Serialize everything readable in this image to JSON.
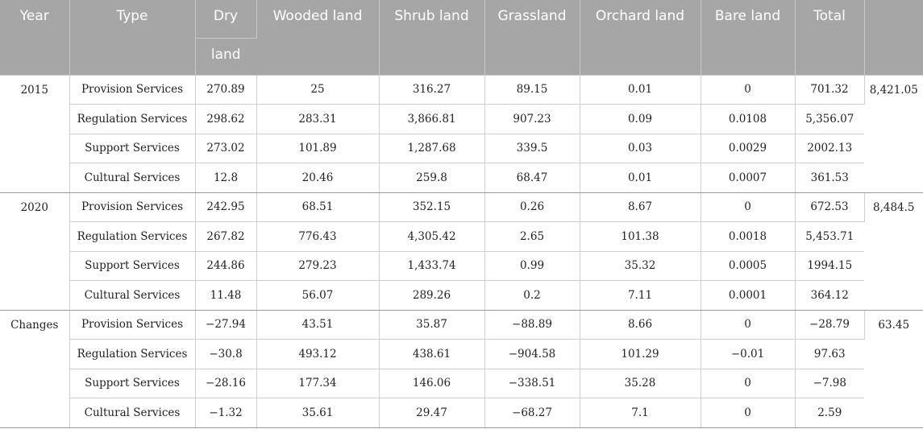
{
  "table": {
    "headers": {
      "year": "Year",
      "type": "Type",
      "dry_line1": "Dry",
      "dry_line2": "land",
      "wooded": "Wooded land",
      "shrub": "Shrub land",
      "grassland": "Grassland",
      "orchard": "Orchard land",
      "bare": "Bare land",
      "total": "Total"
    },
    "groups": [
      {
        "year": "2015",
        "grand_total": "8,421.05",
        "rows": [
          {
            "type": "Provision Services",
            "dry": "270.89",
            "wooded": "25",
            "shrub": "316.27",
            "grass": "89.15",
            "orchard": "0.01",
            "bare": "0",
            "total": "701.32"
          },
          {
            "type": "Regulation Services",
            "dry": "298.62",
            "wooded": "283.31",
            "shrub": "3,866.81",
            "grass": "907.23",
            "orchard": "0.09",
            "bare": "0.0108",
            "total": "5,356.07"
          },
          {
            "type": "Support Services",
            "dry": "273.02",
            "wooded": "101.89",
            "shrub": "1,287.68",
            "grass": "339.5",
            "orchard": "0.03",
            "bare": "0.0029",
            "total": "2002.13"
          },
          {
            "type": "Cultural Services",
            "dry": "12.8",
            "wooded": "20.46",
            "shrub": "259.8",
            "grass": "68.47",
            "orchard": "0.01",
            "bare": "0.0007",
            "total": "361.53"
          }
        ]
      },
      {
        "year": "2020",
        "grand_total": "8,484.5",
        "rows": [
          {
            "type": "Provision Services",
            "dry": "242.95",
            "wooded": "68.51",
            "shrub": "352.15",
            "grass": "0.26",
            "orchard": "8.67",
            "bare": "0",
            "total": "672.53"
          },
          {
            "type": "Regulation Services",
            "dry": "267.82",
            "wooded": "776.43",
            "shrub": "4,305.42",
            "grass": "2.65",
            "orchard": "101.38",
            "bare": "0.0018",
            "total": "5,453.71"
          },
          {
            "type": "Support Services",
            "dry": "244.86",
            "wooded": "279.23",
            "shrub": "1,433.74",
            "grass": "0.99",
            "orchard": "35.32",
            "bare": "0.0005",
            "total": "1994.15"
          },
          {
            "type": "Cultural Services",
            "dry": "11.48",
            "wooded": "56.07",
            "shrub": "289.26",
            "grass": "0.2",
            "orchard": "7.11",
            "bare": "0.0001",
            "total": "364.12"
          }
        ]
      },
      {
        "year": "Changes",
        "grand_total": "63.45",
        "rows": [
          {
            "type": "Provision Services",
            "dry": "−27.94",
            "wooded": "43.51",
            "shrub": "35.87",
            "grass": "−88.89",
            "orchard": "8.66",
            "bare": "0",
            "total": "−28.79"
          },
          {
            "type": "Regulation Services",
            "dry": "−30.8",
            "wooded": "493.12",
            "shrub": "438.61",
            "grass": "−904.58",
            "orchard": "101.29",
            "bare": "−0.01",
            "total": "97.63"
          },
          {
            "type": "Support Services",
            "dry": "−28.16",
            "wooded": "177.34",
            "shrub": "146.06",
            "grass": "−338.51",
            "orchard": "35.28",
            "bare": "0",
            "total": "−7.98"
          },
          {
            "type": "Cultural Services",
            "dry": "−1.32",
            "wooded": "35.61",
            "shrub": "29.47",
            "grass": "−68.27",
            "orchard": "7.1",
            "bare": "0",
            "total": "2.59"
          }
        ]
      }
    ]
  }
}
